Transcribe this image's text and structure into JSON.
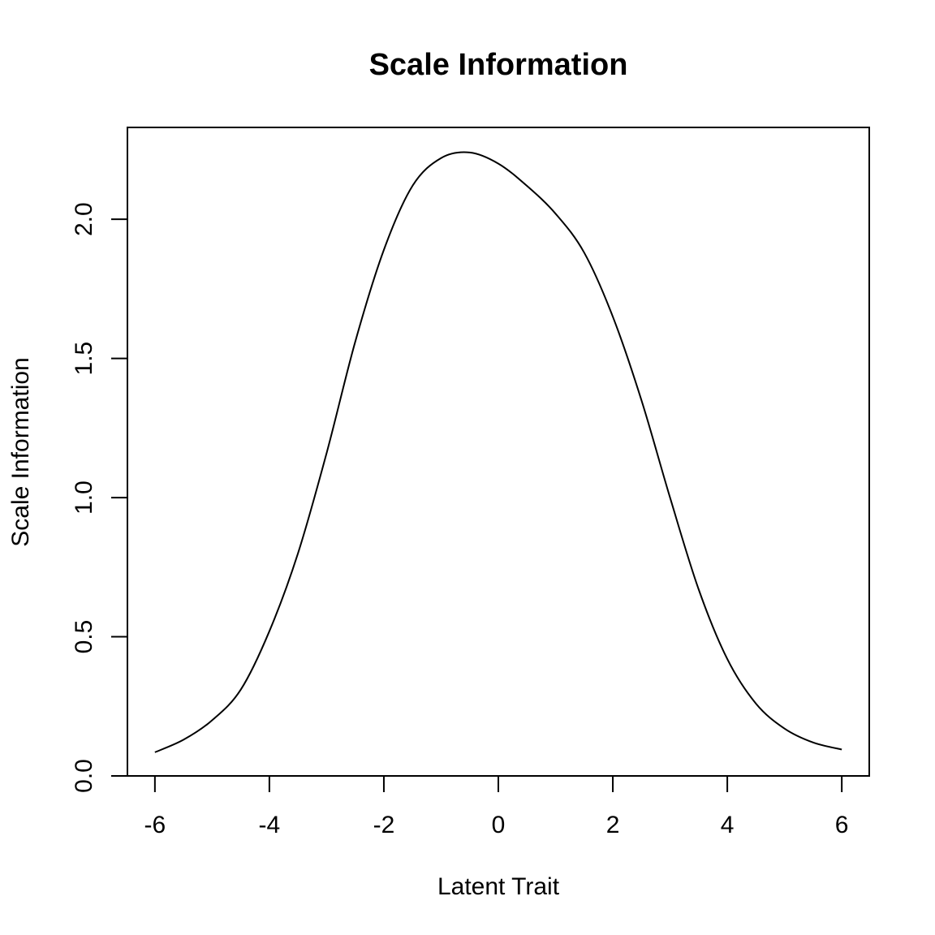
{
  "chart_data": {
    "type": "line",
    "title": "Scale Information",
    "xlabel": "Latent Trait",
    "ylabel": "Scale Information",
    "xlim": [
      -6.48,
      6.48
    ],
    "ylim": [
      0,
      2.33
    ],
    "x_ticks": [
      -6,
      -4,
      -2,
      0,
      2,
      4,
      6
    ],
    "x_tick_labels": [
      "-6",
      "-4",
      "-2",
      "0",
      "2",
      "4",
      "6"
    ],
    "y_ticks": [
      0.0,
      0.5,
      1.0,
      1.5,
      2.0
    ],
    "y_tick_labels": [
      "0.0",
      "0.5",
      "1.0",
      "1.5",
      "2.0"
    ],
    "grid": false,
    "series": [
      {
        "color": "#000000",
        "x": [
          -6,
          -5.5,
          -5,
          -4.5,
          -4,
          -3.5,
          -3,
          -2.5,
          -2,
          -1.5,
          -1,
          -0.5,
          0,
          0.5,
          1,
          1.5,
          2,
          2.5,
          3,
          3.5,
          4,
          4.5,
          5,
          5.5,
          6
        ],
        "y": [
          0.085,
          0.13,
          0.2,
          0.31,
          0.52,
          0.8,
          1.16,
          1.56,
          1.89,
          2.12,
          2.22,
          2.24,
          2.2,
          2.12,
          2.02,
          1.88,
          1.65,
          1.35,
          1.0,
          0.67,
          0.42,
          0.26,
          0.17,
          0.12,
          0.095
        ]
      }
    ]
  }
}
